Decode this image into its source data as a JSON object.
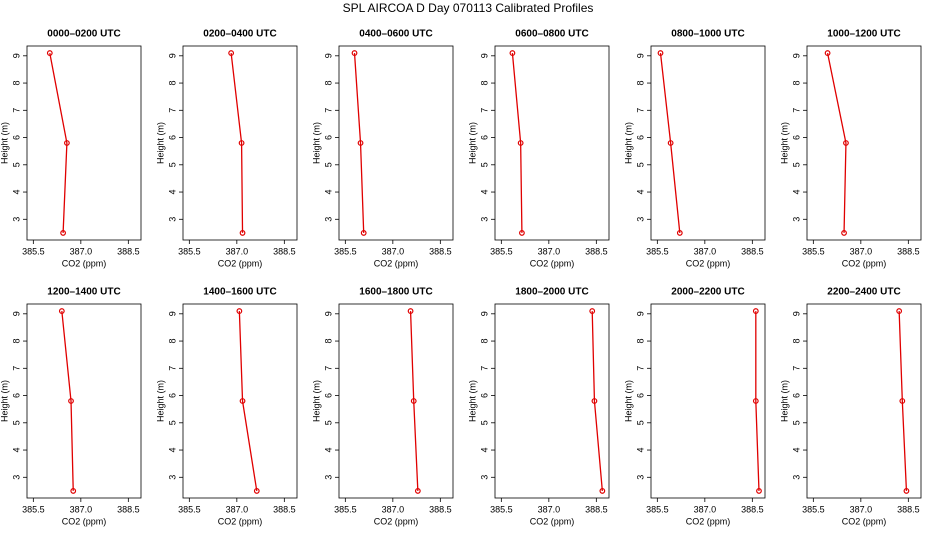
{
  "title": "SPL AIRCOA D  Day 070113  Calibrated Profiles",
  "chart_data": [
    {
      "type": "line",
      "title": "0000–0200 UTC",
      "x_label": "CO2 (ppm)",
      "y_label": "Height (m)",
      "color": "#e00000",
      "x": [
        386.02,
        386.56,
        386.44
      ],
      "values": [
        9.1,
        5.8,
        2.5
      ],
      "xlim": [
        385.3,
        388.9
      ],
      "ylim": [
        2.24,
        9.36
      ],
      "xticks": [
        385.5,
        {
          "value": 387,
          "label": "387.0"
        },
        388.5
      ],
      "yticks": [
        3,
        4,
        5,
        6,
        7,
        8,
        9
      ]
    },
    {
      "type": "line",
      "title": "0200–0400 UTC",
      "x_label": "CO2 (ppm)",
      "y_label": "Height (m)",
      "color": "#e00000",
      "x": [
        386.82,
        387.15,
        387.18
      ],
      "values": [
        9.1,
        5.8,
        2.5
      ],
      "xlim": [
        385.3,
        388.9
      ],
      "ylim": [
        2.24,
        9.36
      ],
      "xticks": [
        385.5,
        {
          "value": 387,
          "label": "387.0"
        },
        388.5
      ],
      "yticks": [
        3,
        4,
        5,
        6,
        7,
        8,
        9
      ]
    },
    {
      "type": "line",
      "title": "0400–0600 UTC",
      "x_label": "CO2 (ppm)",
      "y_label": "Height (m)",
      "color": "#e00000",
      "x": [
        385.79,
        385.98,
        386.08
      ],
      "values": [
        9.1,
        5.8,
        2.5
      ],
      "xlim": [
        385.3,
        388.9
      ],
      "ylim": [
        2.24,
        9.36
      ],
      "xticks": [
        385.5,
        {
          "value": 387,
          "label": "387.0"
        },
        388.5
      ],
      "yticks": [
        3,
        4,
        5,
        6,
        7,
        8,
        9
      ]
    },
    {
      "type": "line",
      "title": "0600–0800 UTC",
      "x_label": "CO2 (ppm)",
      "y_label": "Height (m)",
      "color": "#e00000",
      "x": [
        385.85,
        386.11,
        386.15
      ],
      "values": [
        9.1,
        5.8,
        2.5
      ],
      "xlim": [
        385.3,
        388.9
      ],
      "ylim": [
        2.24,
        9.36
      ],
      "xticks": [
        385.5,
        {
          "value": 387,
          "label": "387.0"
        },
        388.5
      ],
      "yticks": [
        3,
        4,
        5,
        6,
        7,
        8,
        9
      ]
    },
    {
      "type": "line",
      "title": "0800–1000 UTC",
      "x_label": "CO2 (ppm)",
      "y_label": "Height (m)",
      "color": "#e00000",
      "x": [
        385.6,
        385.92,
        386.21
      ],
      "values": [
        9.1,
        5.8,
        2.5
      ],
      "xlim": [
        385.3,
        388.9
      ],
      "ylim": [
        2.24,
        9.36
      ],
      "xticks": [
        385.5,
        {
          "value": 387,
          "label": "387.0"
        },
        388.5
      ],
      "yticks": [
        3,
        4,
        5,
        6,
        7,
        8,
        9
      ]
    },
    {
      "type": "line",
      "title": "1000–1200 UTC",
      "x_label": "CO2 (ppm)",
      "y_label": "Height (m)",
      "color": "#e00000",
      "x": [
        385.95,
        386.53,
        386.47
      ],
      "values": [
        9.1,
        5.8,
        2.5
      ],
      "xlim": [
        385.3,
        388.9
      ],
      "ylim": [
        2.24,
        9.36
      ],
      "xticks": [
        385.5,
        {
          "value": 387,
          "label": "387.0"
        },
        388.5
      ],
      "yticks": [
        3,
        4,
        5,
        6,
        7,
        8,
        9
      ]
    },
    {
      "type": "line",
      "title": "1200–1400 UTC",
      "x_label": "CO2 (ppm)",
      "y_label": "Height (m)",
      "color": "#e00000",
      "x": [
        386.4,
        386.69,
        386.76
      ],
      "values": [
        9.1,
        5.8,
        2.5
      ],
      "xlim": [
        385.3,
        388.9
      ],
      "ylim": [
        2.24,
        9.36
      ],
      "xticks": [
        385.5,
        {
          "value": 387,
          "label": "387.0"
        },
        388.5
      ],
      "yticks": [
        3,
        4,
        5,
        6,
        7,
        8,
        9
      ]
    },
    {
      "type": "line",
      "title": "1400–1600 UTC",
      "x_label": "CO2 (ppm)",
      "y_label": "Height (m)",
      "color": "#e00000",
      "x": [
        387.08,
        387.18,
        387.63
      ],
      "values": [
        9.1,
        5.8,
        2.5
      ],
      "xlim": [
        385.3,
        388.9
      ],
      "ylim": [
        2.24,
        9.36
      ],
      "xticks": [
        385.5,
        {
          "value": 387,
          "label": "387.0"
        },
        388.5
      ],
      "yticks": [
        3,
        4,
        5,
        6,
        7,
        8,
        9
      ]
    },
    {
      "type": "line",
      "title": "1600–1800 UTC",
      "x_label": "CO2 (ppm)",
      "y_label": "Height (m)",
      "color": "#e00000",
      "x": [
        387.56,
        387.66,
        387.79
      ],
      "values": [
        9.1,
        5.8,
        2.5
      ],
      "xlim": [
        385.3,
        388.9
      ],
      "ylim": [
        2.24,
        9.36
      ],
      "xticks": [
        385.5,
        {
          "value": 387,
          "label": "387.0"
        },
        388.5
      ],
      "yticks": [
        3,
        4,
        5,
        6,
        7,
        8,
        9
      ]
    },
    {
      "type": "line",
      "title": "1800–2000 UTC",
      "x_label": "CO2 (ppm)",
      "y_label": "Height (m)",
      "color": "#e00000",
      "x": [
        388.37,
        388.44,
        388.69
      ],
      "values": [
        9.1,
        5.8,
        2.5
      ],
      "xlim": [
        385.3,
        388.9
      ],
      "ylim": [
        2.24,
        9.36
      ],
      "xticks": [
        385.5,
        {
          "value": 387,
          "label": "387.0"
        },
        388.5
      ],
      "yticks": [
        3,
        4,
        5,
        6,
        7,
        8,
        9
      ]
    },
    {
      "type": "line",
      "title": "2000–2200 UTC",
      "x_label": "CO2 (ppm)",
      "y_label": "Height (m)",
      "color": "#e00000",
      "x": [
        388.61,
        388.61,
        388.71
      ],
      "values": [
        9.1,
        5.8,
        2.5
      ],
      "xlim": [
        385.3,
        388.9
      ],
      "ylim": [
        2.24,
        9.36
      ],
      "xticks": [
        385.5,
        {
          "value": 387,
          "label": "387.0"
        },
        388.5
      ],
      "yticks": [
        3,
        4,
        5,
        6,
        7,
        8,
        9
      ]
    },
    {
      "type": "line",
      "title": "2200–2400 UTC",
      "x_label": "CO2 (ppm)",
      "y_label": "Height (m)",
      "color": "#e00000",
      "x": [
        388.21,
        388.31,
        388.44
      ],
      "values": [
        9.1,
        5.8,
        2.5
      ],
      "xlim": [
        385.3,
        388.9
      ],
      "ylim": [
        2.24,
        9.36
      ],
      "xticks": [
        385.5,
        {
          "value": 387,
          "label": "387.0"
        },
        388.5
      ],
      "yticks": [
        3,
        4,
        5,
        6,
        7,
        8,
        9
      ]
    }
  ]
}
